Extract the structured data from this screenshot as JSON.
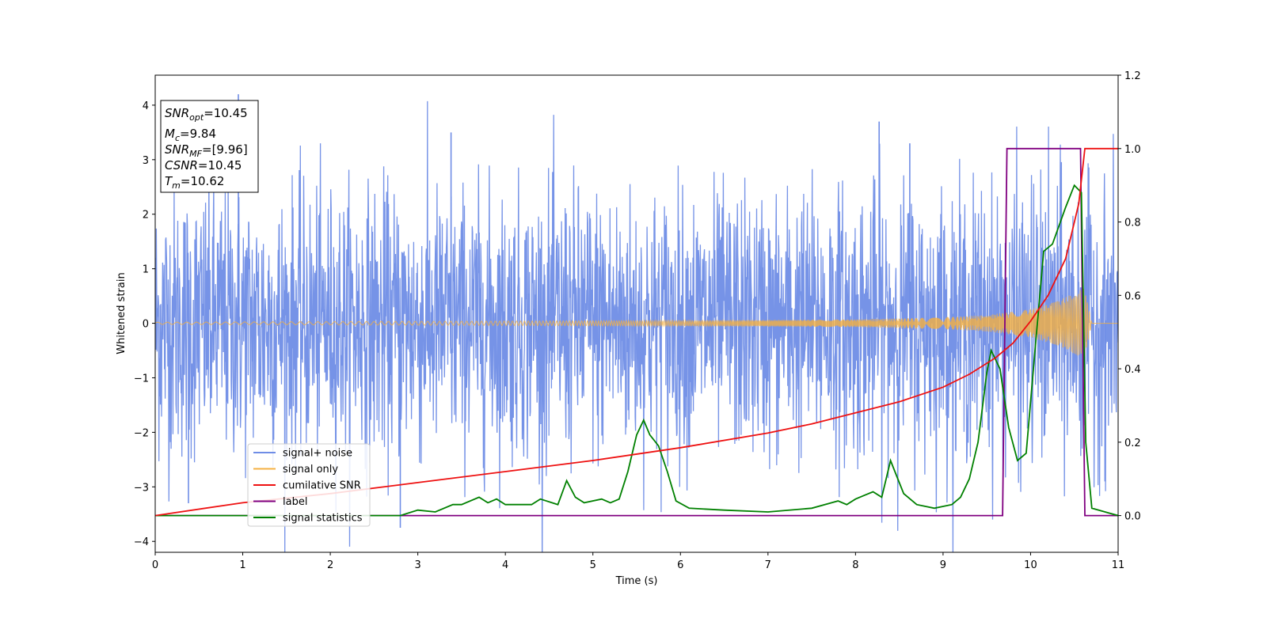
{
  "chart_data": {
    "type": "line",
    "xlabel": "Time (s)",
    "ylabel": "Whitened strain",
    "xlim": [
      0,
      11
    ],
    "ylim_left": [
      -4.2,
      4.55
    ],
    "ylim_right": [
      -0.1,
      1.2
    ],
    "x_ticks": [
      "0",
      "1",
      "2",
      "3",
      "4",
      "5",
      "6",
      "7",
      "8",
      "9",
      "10",
      "11"
    ],
    "y_ticks_left": [
      "−4",
      "−3",
      "−2",
      "−1",
      "0",
      "1",
      "2",
      "3",
      "4"
    ],
    "y_ticks_right": [
      "0.0",
      "0.2",
      "0.4",
      "0.6",
      "0.8",
      "1.0",
      "1.2"
    ],
    "legend_position": "lower-left",
    "annotation": {
      "snr_opt": "10.45",
      "mc": "9.84",
      "snr_mf": "[9.96]",
      "csnr": "10.45",
      "tm": "10.62"
    },
    "series": [
      {
        "name": "signal+ noise",
        "color": "#6f8de6",
        "axis": "left",
        "description_values": "noise band ~[-2.5, 2.5], peaks up to 4.2, min about -3.8",
        "envelope_x": [
          0,
          1,
          2,
          3,
          4,
          5,
          6,
          7,
          8,
          9,
          10,
          11
        ],
        "envelope_upper": [
          2.6,
          2.6,
          2.5,
          2.6,
          2.5,
          2.6,
          2.5,
          2.5,
          2.6,
          2.5,
          2.6,
          2.5
        ],
        "envelope_lower": [
          -2.6,
          -2.6,
          -2.5,
          -2.6,
          -2.5,
          -2.6,
          -2.5,
          -2.5,
          -2.6,
          -2.5,
          -2.6,
          -2.5
        ],
        "spikes_x": [
          0.95,
          0.38,
          2.8,
          3.38,
          8.27,
          8.62,
          10.85
        ],
        "spikes_y": [
          4.2,
          -3.3,
          -3.75,
          3.5,
          3.7,
          3.3,
          -2.9
        ]
      },
      {
        "name": "signal only",
        "color": "#f5b041",
        "axis": "left",
        "envelope_x": [
          0,
          2,
          4,
          6,
          7,
          8,
          8.5,
          9,
          9.5,
          10,
          10.3,
          10.55,
          10.62,
          10.7,
          11
        ],
        "envelope_amplitude": [
          0.02,
          0.03,
          0.04,
          0.05,
          0.06,
          0.07,
          0.09,
          0.11,
          0.15,
          0.26,
          0.4,
          0.6,
          0.65,
          0.0,
          0.0
        ]
      },
      {
        "name": "cumilative SNR",
        "color": "#ee1111",
        "axis": "right",
        "x": [
          0,
          1,
          2,
          3,
          4,
          5,
          6,
          7,
          7.5,
          8,
          8.5,
          9,
          9.3,
          9.6,
          9.8,
          10,
          10.2,
          10.4,
          10.55,
          10.62,
          11
        ],
        "y": [
          0.0,
          0.035,
          0.06,
          0.09,
          0.12,
          0.15,
          0.185,
          0.225,
          0.25,
          0.28,
          0.31,
          0.35,
          0.385,
          0.43,
          0.47,
          0.53,
          0.6,
          0.7,
          0.85,
          1.0,
          1.0
        ]
      },
      {
        "name": "label",
        "color": "#800080",
        "axis": "right",
        "x": [
          0,
          9.68,
          9.73,
          10.57,
          10.62,
          11
        ],
        "y": [
          0.0,
          0.0,
          1.0,
          1.0,
          0.0,
          0.0
        ]
      },
      {
        "name": "signal statistics",
        "color": "#008000",
        "axis": "right",
        "x": [
          0,
          2.8,
          3.0,
          3.2,
          3.4,
          3.5,
          3.7,
          3.8,
          3.9,
          4.0,
          4.3,
          4.4,
          4.6,
          4.7,
          4.8,
          4.9,
          5.1,
          5.2,
          5.3,
          5.4,
          5.5,
          5.58,
          5.65,
          5.75,
          5.85,
          5.95,
          6.1,
          6.5,
          7.0,
          7.5,
          7.8,
          7.9,
          8.0,
          8.1,
          8.2,
          8.3,
          8.4,
          8.45,
          8.55,
          8.7,
          8.9,
          9.1,
          9.2,
          9.3,
          9.4,
          9.5,
          9.55,
          9.65,
          9.75,
          9.85,
          9.95,
          10.05,
          10.15,
          10.25,
          10.4,
          10.5,
          10.58,
          10.63,
          10.7,
          11
        ],
        "y": [
          0.0,
          0.0,
          0.015,
          0.01,
          0.03,
          0.03,
          0.05,
          0.035,
          0.045,
          0.03,
          0.03,
          0.045,
          0.03,
          0.095,
          0.05,
          0.035,
          0.045,
          0.035,
          0.045,
          0.12,
          0.22,
          0.26,
          0.22,
          0.19,
          0.12,
          0.04,
          0.02,
          0.015,
          0.01,
          0.02,
          0.04,
          0.03,
          0.045,
          0.055,
          0.065,
          0.05,
          0.15,
          0.12,
          0.06,
          0.03,
          0.02,
          0.03,
          0.05,
          0.1,
          0.2,
          0.39,
          0.45,
          0.4,
          0.24,
          0.15,
          0.17,
          0.45,
          0.72,
          0.74,
          0.84,
          0.9,
          0.88,
          0.2,
          0.02,
          0.0
        ]
      }
    ]
  }
}
